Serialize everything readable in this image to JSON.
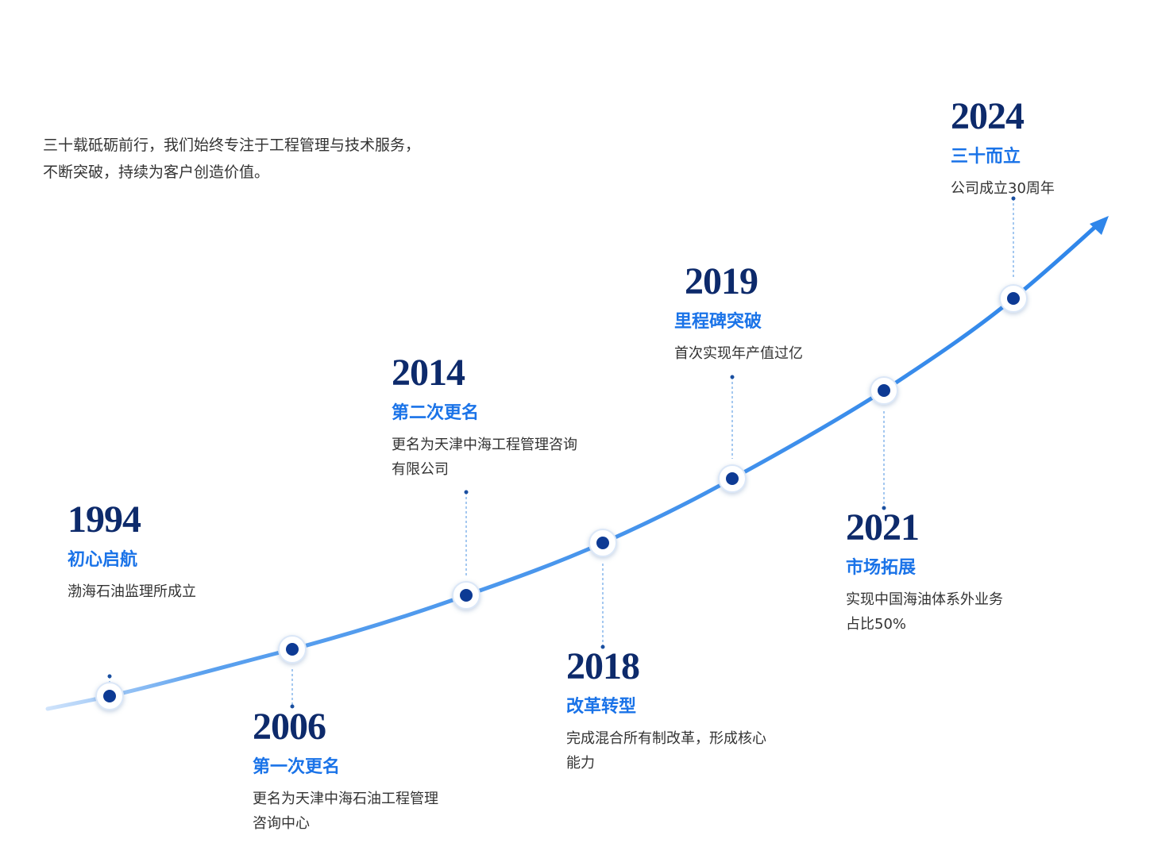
{
  "intro": [
    "三十载砥砺前行，我们始终专注于工程管理与技术服务，",
    "不断突破，持续为客户创造价值。"
  ],
  "events": [
    {
      "year": "1994",
      "title": "初心启航",
      "description": [
        "渤海石油监理所成立"
      ]
    },
    {
      "year": "2006",
      "title": "第一次更名",
      "description": [
        "更名为天津中海石油工程管理",
        "咨询中心"
      ]
    },
    {
      "year": "2014",
      "title": "第二次更名",
      "description": [
        "更名为天津中海工程管理咨询",
        "有限公司"
      ]
    },
    {
      "year": "2018",
      "title": "改革转型",
      "description": [
        "完成混合所有制改革，形成核心",
        "能力"
      ]
    },
    {
      "year": "2019",
      "title": "里程碑突破",
      "description": [
        "首次实现年产值过亿"
      ]
    },
    {
      "year": "2021",
      "title": "市场拓展",
      "description": [
        "实现中国海油体系外业务",
        "占比50%"
      ]
    },
    {
      "year": "2024",
      "title": "三十而立",
      "description": [
        "公司成立30周年"
      ]
    }
  ]
}
